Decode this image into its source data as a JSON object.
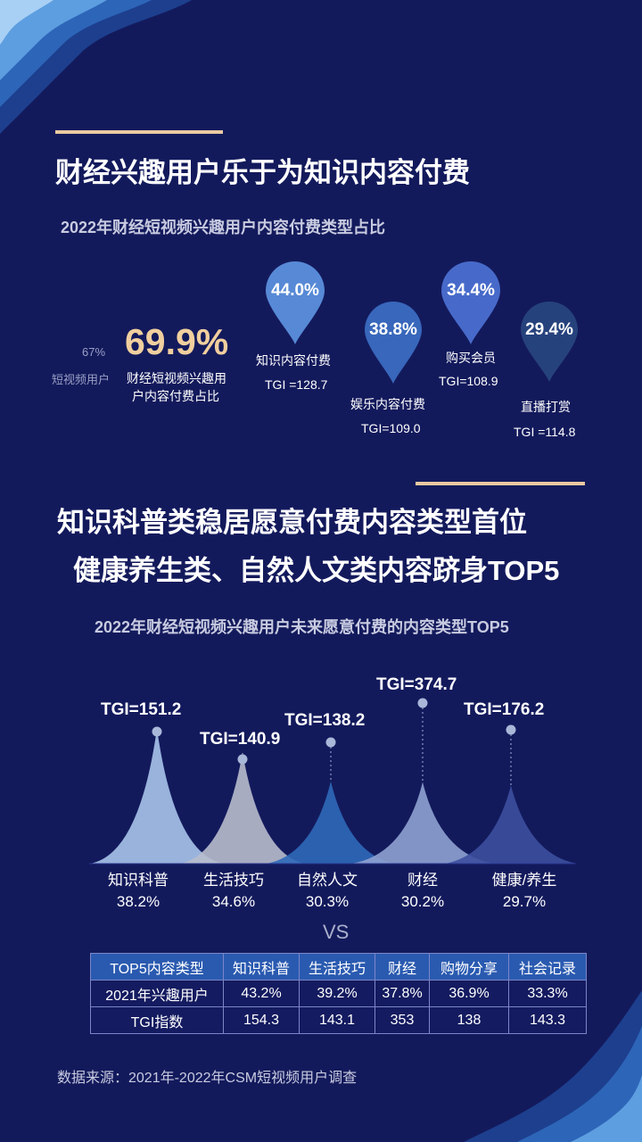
{
  "section1": {
    "title": "财经兴趣用户乐于为知识内容付费",
    "subtitle": "2022年财经短视频兴趣用户内容付费类型占比",
    "compare_value": "67%",
    "compare_label": "短视频用户",
    "main_value": "69.9%",
    "main_label_line1": "财经短视频兴趣用",
    "main_label_line2": "户内容付费占比"
  },
  "pins": [
    {
      "value": "44.0%",
      "label": "知识内容付费",
      "tgi": "TGI =128.7",
      "color": "#5b8fdc"
    },
    {
      "value": "38.8%",
      "label": "娱乐内容付费",
      "tgi": "TGI=109.0",
      "color": "#3a6cc0"
    },
    {
      "value": "34.4%",
      "label": "购买会员",
      "tgi": "TGI=108.9",
      "color": "#4a6fd0"
    },
    {
      "value": "29.4%",
      "label": "直播打赏",
      "tgi": "TGI =114.8",
      "color": "#27447e"
    }
  ],
  "section2": {
    "title_line1": "知识科普类稳居愿意付费内容类型首位",
    "title_line2": "健康养生类、自然人文类内容跻身TOP5",
    "subtitle": "2022年财经短视频兴趣用户未来愿意付费的内容类型TOP5",
    "vs": "VS"
  },
  "chart_data": {
    "type": "area",
    "categories": [
      "知识科普",
      "生活技巧",
      "自然人文",
      "财经",
      "健康/养生"
    ],
    "values": [
      38.2,
      34.6,
      30.3,
      30.2,
      29.7
    ],
    "value_labels": [
      "38.2%",
      "34.6%",
      "30.3%",
      "30.2%",
      "29.7%"
    ],
    "tgi_labels": [
      "TGI=151.2",
      "TGI=140.9",
      "TGI=138.2",
      "TGI=374.7",
      "TGI=176.2"
    ],
    "tgi": [
      151.2,
      140.9,
      138.2,
      374.7,
      176.2
    ],
    "colors": [
      "#a9c4ea",
      "#b8bccc",
      "#2f69b8",
      "#8fa2d0",
      "#3d4f9e"
    ],
    "title": "2022年财经短视频兴趣用户未来愿意付费的内容类型TOP5"
  },
  "table": {
    "header": [
      "TOP5内容类型",
      "知识科普",
      "生活技巧",
      "财经",
      "购物分享",
      "社会记录"
    ],
    "rows": [
      [
        "2021年兴趣用户",
        "43.2%",
        "39.2%",
        "37.8%",
        "36.9%",
        "33.3%"
      ],
      [
        "TGI指数",
        "154.3",
        "143.1",
        "353",
        "138",
        "143.3"
      ]
    ]
  },
  "source": "数据来源：2021年-2022年CSM短视频用户调查"
}
